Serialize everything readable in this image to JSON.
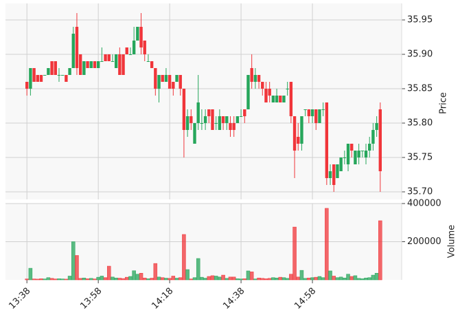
{
  "chart_data": {
    "type": "candlestick",
    "ylabel": "Price",
    "volume_ylabel": "Volume",
    "up_color": "#26a65b",
    "down_color": "#f0353a",
    "grid": true,
    "xlim": [
      -6,
      105
    ],
    "xticks": [
      {
        "value": 0,
        "label": "13:38"
      },
      {
        "value": 20,
        "label": "13:58"
      },
      {
        "value": 40,
        "label": "14:18"
      },
      {
        "value": 60,
        "label": "14:38"
      },
      {
        "value": 80,
        "label": "14:58"
      }
    ],
    "ylim": [
      35.689,
      35.974
    ],
    "yticks": [
      {
        "value": 35.7,
        "label": "35.70"
      },
      35.75,
      {
        "value": 35.8,
        "label": "35.80"
      },
      35.85,
      {
        "value": 35.9,
        "label": "35.90"
      },
      35.95
    ],
    "volume_ylim": [
      0,
      400000
    ],
    "volume_yticks": [
      200000,
      400000
    ],
    "open": [
      35.86,
      35.85,
      35.88,
      35.87,
      35.87,
      35.87,
      35.87,
      35.89,
      35.89,
      35.87,
      35.87,
      35.87,
      35.87,
      35.88,
      35.94,
      35.9,
      35.87,
      35.89,
      35.88,
      35.89,
      35.88,
      35.89,
      35.9,
      35.9,
      35.89,
      35.88,
      35.9,
      35.9,
      35.91,
      35.9,
      35.9,
      35.92,
      35.94,
      35.92,
      35.89,
      35.89,
      35.88,
      35.85,
      35.87,
      35.86,
      35.87,
      35.86,
      35.86,
      35.87,
      35.85,
      35.79,
      35.81,
      35.77,
      35.8,
      35.8,
      35.8,
      35.82,
      35.82,
      35.8,
      35.79,
      35.81,
      35.8,
      35.8,
      35.8,
      35.8,
      35.81,
      35.82,
      35.82,
      35.88,
      35.86,
      35.87,
      35.86,
      35.85,
      35.85,
      35.83,
      35.83,
      35.84,
      35.83,
      35.85,
      35.86,
      35.81,
      35.78,
      35.77,
      35.82,
      35.82,
      35.81,
      35.82,
      35.8,
      35.82,
      35.83,
      35.72,
      35.74,
      35.72,
      35.73,
      35.75,
      35.74,
      35.77,
      35.74,
      35.75,
      35.76,
      35.75,
      35.76,
      35.77,
      35.79,
      35.82
    ],
    "high": [
      35.86,
      35.88,
      35.88,
      35.87,
      35.87,
      35.87,
      35.88,
      35.89,
      35.89,
      35.88,
      35.87,
      35.87,
      35.88,
      35.94,
      35.96,
      35.9,
      35.89,
      35.89,
      35.89,
      35.89,
      35.89,
      35.91,
      35.9,
      35.9,
      35.9,
      35.9,
      35.91,
      35.9,
      35.91,
      35.91,
      35.94,
      35.94,
      35.96,
      35.92,
      35.9,
      35.89,
      35.88,
      35.87,
      35.87,
      35.88,
      35.87,
      35.86,
      35.87,
      35.87,
      35.85,
      35.82,
      35.82,
      35.8,
      35.87,
      35.82,
      35.82,
      35.82,
      35.82,
      35.81,
      35.82,
      35.81,
      35.81,
      35.81,
      35.81,
      35.81,
      35.82,
      35.82,
      35.87,
      35.9,
      35.88,
      35.87,
      35.86,
      35.86,
      35.86,
      35.84,
      35.85,
      35.84,
      35.84,
      35.86,
      35.86,
      35.81,
      35.8,
      35.81,
      35.82,
      35.82,
      35.82,
      35.82,
      35.82,
      35.83,
      35.83,
      35.74,
      35.74,
      35.74,
      35.75,
      35.76,
      35.77,
      35.77,
      35.76,
      35.77,
      35.76,
      35.77,
      35.78,
      35.8,
      35.81,
      35.83
    ],
    "low": [
      35.84,
      35.84,
      35.86,
      35.86,
      35.86,
      35.87,
      35.87,
      35.87,
      35.87,
      35.86,
      35.87,
      35.86,
      35.87,
      35.88,
      35.87,
      35.87,
      35.87,
      35.88,
      35.88,
      35.88,
      35.88,
      35.89,
      35.89,
      35.89,
      35.89,
      35.88,
      35.87,
      35.87,
      35.9,
      35.9,
      35.9,
      35.92,
      35.9,
      35.89,
      35.89,
      35.88,
      35.84,
      35.83,
      35.86,
      35.86,
      35.85,
      35.84,
      35.86,
      35.84,
      35.75,
      35.78,
      35.79,
      35.77,
      35.79,
      35.79,
      35.79,
      35.8,
      35.79,
      35.79,
      35.79,
      35.79,
      35.79,
      35.78,
      35.78,
      35.8,
      35.81,
      35.8,
      35.82,
      35.85,
      35.85,
      35.85,
      35.84,
      35.83,
      35.83,
      35.83,
      35.83,
      35.83,
      35.83,
      35.84,
      35.8,
      35.72,
      35.76,
      35.76,
      35.81,
      35.8,
      35.8,
      35.79,
      35.8,
      35.81,
      35.71,
      35.71,
      35.7,
      35.72,
      35.73,
      35.74,
      35.73,
      35.75,
      35.74,
      35.74,
      35.75,
      35.74,
      35.75,
      35.76,
      35.78,
      35.7
    ],
    "close": [
      35.85,
      35.88,
      35.86,
      35.86,
      35.86,
      35.87,
      35.88,
      35.87,
      35.87,
      35.87,
      35.87,
      35.86,
      35.88,
      35.93,
      35.88,
      35.87,
      35.89,
      35.88,
      35.89,
      35.88,
      35.89,
      35.89,
      35.89,
      35.89,
      35.89,
      35.9,
      35.87,
      35.87,
      35.9,
      35.9,
      35.92,
      35.94,
      35.91,
      35.9,
      35.89,
      35.88,
      35.85,
      35.87,
      35.86,
      35.87,
      35.85,
      35.85,
      35.87,
      35.85,
      35.79,
      35.81,
      35.8,
      35.8,
      35.83,
      35.8,
      35.81,
      35.81,
      35.79,
      35.8,
      35.81,
      35.8,
      35.81,
      35.79,
      35.79,
      35.81,
      35.81,
      35.81,
      35.87,
      35.86,
      35.87,
      35.86,
      35.85,
      35.83,
      35.84,
      35.84,
      35.84,
      35.83,
      35.84,
      35.85,
      35.81,
      35.76,
      35.77,
      35.81,
      35.82,
      35.81,
      35.82,
      35.8,
      35.82,
      35.82,
      35.72,
      35.73,
      35.71,
      35.74,
      35.75,
      35.75,
      35.77,
      35.76,
      35.76,
      35.76,
      35.76,
      35.76,
      35.77,
      35.79,
      35.8,
      35.73
    ],
    "volume": [
      5000,
      61000,
      5000,
      4000,
      6000,
      5000,
      12000,
      8000,
      5000,
      6000,
      5000,
      4000,
      20000,
      200000,
      128000,
      8000,
      10000,
      6000,
      8000,
      5000,
      14000,
      20000,
      12000,
      72000,
      15000,
      10000,
      9000,
      7000,
      14000,
      18000,
      48000,
      30000,
      35000,
      10000,
      6000,
      9000,
      86000,
      15000,
      12000,
      9000,
      8000,
      20000,
      9000,
      12000,
      238000,
      54000,
      5000,
      12000,
      112000,
      14000,
      9000,
      18000,
      22000,
      20000,
      15000,
      25000,
      8000,
      15000,
      15000,
      6000,
      5000,
      6000,
      47000,
      42000,
      5000,
      10000,
      8000,
      6000,
      8000,
      12000,
      10000,
      14000,
      12000,
      8000,
      30000,
      277000,
      15000,
      50000,
      8000,
      10000,
      12000,
      14000,
      18000,
      12000,
      375000,
      47000,
      20000,
      12000,
      15000,
      10000,
      30000,
      18000,
      22000,
      8000,
      6000,
      10000,
      12000,
      25000,
      35000,
      310000
    ]
  }
}
